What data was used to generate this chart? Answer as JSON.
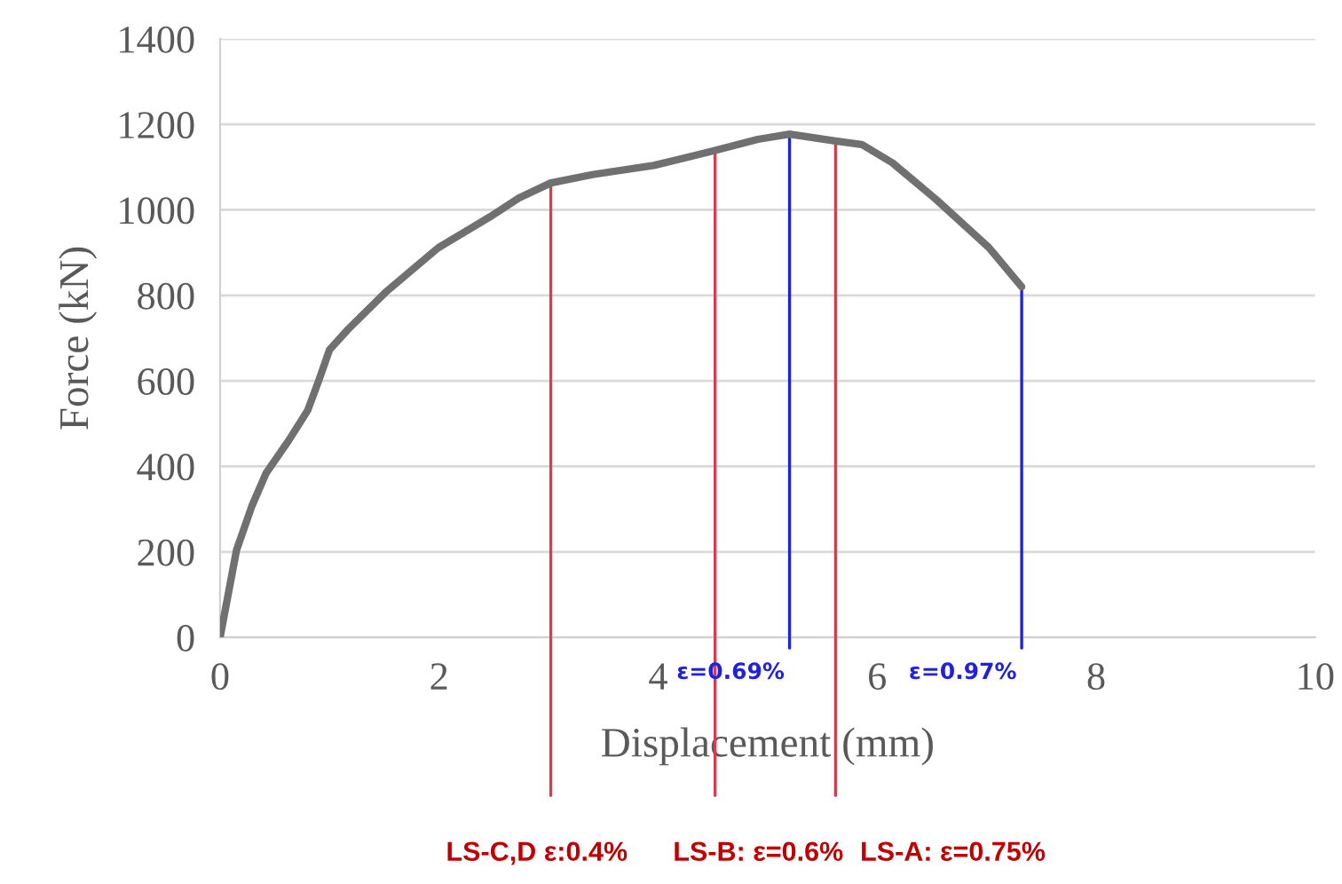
{
  "chart_data": {
    "type": "line",
    "xlabel": "Displacement (mm)",
    "ylabel": "Force (kN)",
    "series": [
      {
        "color": "#707070",
        "x": [
          0,
          0.15,
          0.29,
          0.42,
          0.63,
          0.8,
          0.9,
          1.0,
          1.17,
          1.51,
          1.99,
          2.46,
          2.73,
          3.02,
          3.41,
          3.96,
          4.52,
          4.91,
          5.2,
          5.62,
          5.86,
          6.14,
          6.54,
          7.02,
          7.32
        ],
        "values": [
          0,
          204,
          307,
          384,
          462,
          531,
          600,
          673,
          721,
          807,
          911,
          983,
          1028,
          1063,
          1083,
          1104,
          1139,
          1165,
          1177,
          1161,
          1153,
          1110,
          1024,
          912,
          820
        ]
      }
    ],
    "xlim": [
      0,
      10
    ],
    "xticks": [
      0,
      2,
      4,
      6,
      8,
      10
    ],
    "ylim": [
      0,
      1400
    ],
    "yticks": [
      0,
      200,
      400,
      600,
      800,
      1000,
      1200,
      1400
    ],
    "grid": "y",
    "legend": false,
    "marker": "none",
    "line_style": "solid",
    "ref_lines": [
      {
        "axis": "x",
        "value": 3.02,
        "color": "#d04050"
      },
      {
        "axis": "x",
        "value": 4.52,
        "color": "#d04050"
      },
      {
        "axis": "x",
        "value": 5.62,
        "color": "#d04050"
      },
      {
        "axis": "x",
        "value": 5.2,
        "color": "#2020e0"
      },
      {
        "axis": "x",
        "value": 7.32,
        "color": "#2020e0"
      }
    ],
    "annotations": [
      {
        "text": "ε=0.69%",
        "x": 5.2,
        "y": 0
      },
      {
        "text": "ε=0.97%",
        "x": 7.32,
        "y": 0
      },
      "LS-C,D ε:0.4%",
      "LS-B: ε=0.6%",
      "LS-A: ε=0.75%"
    ]
  }
}
